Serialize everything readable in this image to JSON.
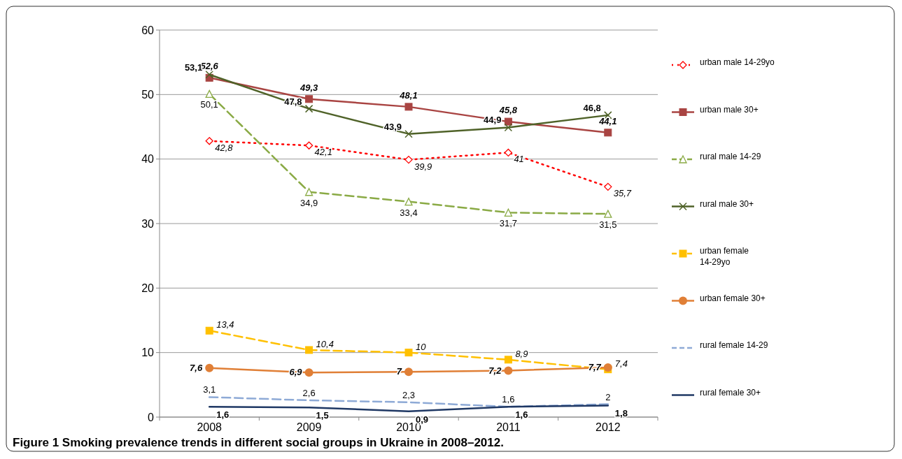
{
  "chart_data": {
    "type": "line",
    "categories": [
      "2008",
      "2009",
      "2010",
      "2011",
      "2012"
    ],
    "ylim": [
      0,
      60
    ],
    "yticks": [
      0,
      10,
      20,
      30,
      40,
      50,
      60
    ],
    "grid": "y",
    "legend": "right",
    "series": [
      {
        "name": "urban male 14-29yo",
        "color": "#ff0000",
        "marker": "diamond",
        "line_style": "dotted",
        "values": [
          42.8,
          42.1,
          39.9,
          41,
          35.7
        ],
        "value_labels": [
          "42,8",
          "42,1",
          "39,9",
          "41",
          "35,7"
        ]
      },
      {
        "name": "urban male 30+",
        "color": "#a94442",
        "marker": "square",
        "line_style": "solid",
        "values": [
          52.6,
          49.3,
          48.1,
          45.8,
          44.1
        ],
        "value_labels": [
          "52,6",
          "49,3",
          "48,1",
          "45,8",
          "44,1"
        ]
      },
      {
        "name": "rural male 14-29",
        "color": "#8aaa45",
        "marker": "triangle",
        "line_style": "dashed",
        "values": [
          50.1,
          34.9,
          33.4,
          31.7,
          31.5
        ],
        "value_labels": [
          "50,1",
          "34,9",
          "33,4",
          "31,7",
          "31,5"
        ]
      },
      {
        "name": "rural male 30+",
        "color": "#4f6228",
        "marker": "cross",
        "line_style": "solid",
        "values": [
          53.1,
          47.8,
          43.9,
          44.9,
          46.8
        ],
        "value_labels": [
          "53,1",
          "47,8",
          "43,9",
          "44,9",
          "46,8"
        ]
      },
      {
        "name": "urban female 14-29yo",
        "color": "#ffc000",
        "marker": "square",
        "line_style": "dashed",
        "values": [
          13.4,
          10.4,
          10,
          8.9,
          7.4
        ],
        "value_labels": [
          "13,4",
          "10,4",
          "10",
          "8,9",
          "7,4"
        ]
      },
      {
        "name": "urban female 30+",
        "color": "#e07f36",
        "marker": "circle",
        "line_style": "solid",
        "values": [
          7.6,
          6.9,
          7,
          7.2,
          7.7
        ],
        "value_labels": [
          "7,6",
          "6,9",
          "7",
          "7,2",
          "7,7"
        ]
      },
      {
        "name": "rural female 14-29",
        "color": "#8eaad6",
        "marker": "none",
        "line_style": "dashed",
        "values": [
          3.1,
          2.6,
          2.3,
          1.6,
          2
        ],
        "value_labels": [
          "3,1",
          "2,6",
          "2,3",
          "1,6",
          "2"
        ]
      },
      {
        "name": "rural female 30+",
        "color": "#1f3864",
        "marker": "none",
        "line_style": "solid",
        "values": [
          1.6,
          1.5,
          0.9,
          1.6,
          1.8
        ],
        "value_labels": [
          "1,6",
          "1,5",
          "0,9",
          "1,6",
          "1,8"
        ]
      }
    ],
    "annotations": [
      "Figure 1 Smoking prevalence trends in different social groups in Ukraine in 2008–2012."
    ]
  }
}
